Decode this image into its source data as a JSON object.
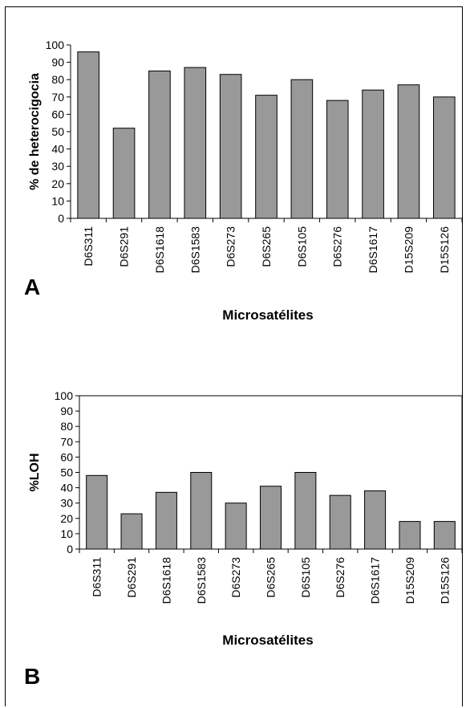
{
  "chart_data": [
    {
      "panel": "A",
      "type": "bar",
      "ylabel": "% de heterocigocia",
      "xlabel": "Microsatélites",
      "categories": [
        "D6S311",
        "D6S291",
        "D6S1618",
        "D6S1583",
        "D6S273",
        "D6S265",
        "D6S105",
        "D6S276",
        "D6S1617",
        "D15S209",
        "D15S126"
      ],
      "values": [
        96,
        52,
        85,
        87,
        83,
        71,
        80,
        68,
        74,
        77,
        70
      ],
      "ylim": [
        0,
        100
      ],
      "yticks": [
        0,
        10,
        20,
        30,
        40,
        50,
        60,
        70,
        80,
        90,
        100
      ],
      "bar_color": "#999999",
      "grid": false,
      "frame": false
    },
    {
      "panel": "B",
      "type": "bar",
      "ylabel": "%LOH",
      "xlabel": "Microsatélites",
      "categories": [
        "D6S311",
        "D6S291",
        "D6S1618",
        "D6S1583",
        "D6S273",
        "D6S265",
        "D6S105",
        "D6S276",
        "D6S1617",
        "D15S209",
        "D15S126"
      ],
      "values": [
        48,
        23,
        37,
        50,
        30,
        41,
        50,
        35,
        38,
        18,
        18
      ],
      "ylim": [
        0,
        100
      ],
      "yticks": [
        0,
        10,
        20,
        30,
        40,
        50,
        60,
        70,
        80,
        90,
        100
      ],
      "bar_color": "#999999",
      "grid": false,
      "frame": true
    }
  ]
}
